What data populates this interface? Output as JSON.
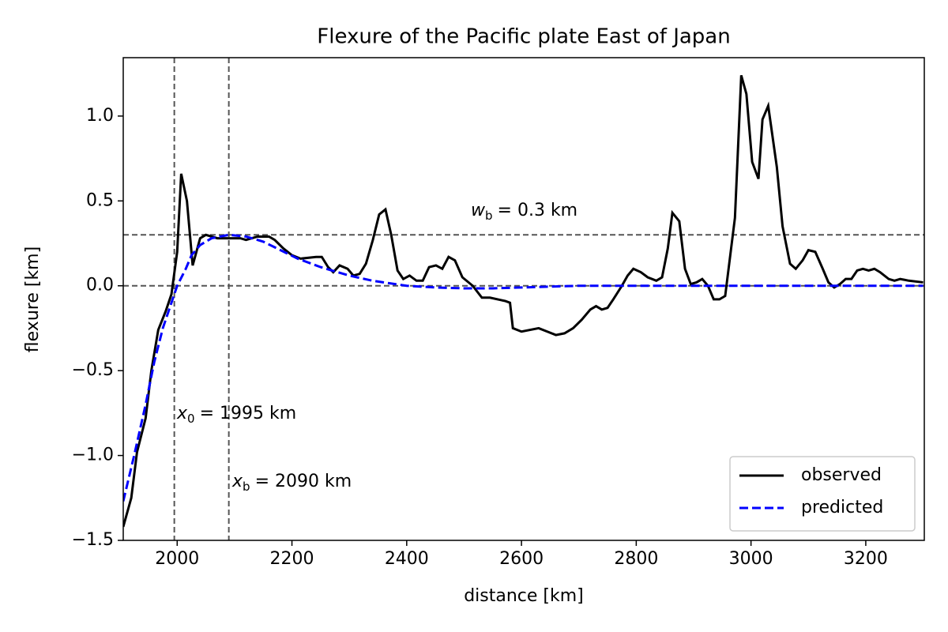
{
  "chart_data": {
    "type": "line",
    "title": "Flexure of the Pacific plate East of Japan",
    "xlabel": "distance [km]",
    "ylabel": "flexure [km]",
    "xlim": [
      1906,
      3302
    ],
    "ylim": [
      -1.5,
      1.344
    ],
    "xticks": [
      2000,
      2200,
      2400,
      2600,
      2800,
      3000,
      3200
    ],
    "yticks": [
      {
        "value": -1.5,
        "label": "−1.5"
      },
      {
        "value": -1.0,
        "label": "−1.0"
      },
      {
        "value": -0.5,
        "label": "−0.5"
      },
      {
        "value": 0.0,
        "label": "0.0"
      },
      0.5,
      {
        "value": 1.0,
        "label": "1.0"
      }
    ],
    "reference_lines": {
      "x": [
        1995,
        2090
      ],
      "y": [
        0,
        0.3
      ],
      "color": "#555555"
    },
    "annotations": [
      {
        "var": "w",
        "sub": "b",
        "text": "= 0.3 km"
      },
      {
        "var": "x",
        "sub": "0",
        "text": "= 1995 km"
      },
      {
        "var": "x",
        "sub": "b",
        "text": "= 2090 km"
      }
    ],
    "legend": "lower right",
    "series": [
      {
        "name": "observed",
        "color": "#000000",
        "dash": false,
        "x": [
          1906,
          1920,
          1930,
          1945,
          1955,
          1967,
          1980,
          1990,
          2000,
          2007,
          2017,
          2027,
          2040,
          2050,
          2070,
          2090,
          2110,
          2120,
          2140,
          2160,
          2170,
          2185,
          2200,
          2215,
          2242,
          2252,
          2263,
          2272,
          2283,
          2297,
          2307,
          2318,
          2329,
          2341,
          2352,
          2363,
          2373,
          2384,
          2394,
          2405,
          2417,
          2428,
          2439,
          2451,
          2462,
          2473,
          2484,
          2497,
          2515,
          2531,
          2545,
          2572,
          2580,
          2585,
          2600,
          2630,
          2645,
          2660,
          2675,
          2690,
          2705,
          2720,
          2730,
          2740,
          2750,
          2760,
          2775,
          2785,
          2795,
          2808,
          2820,
          2835,
          2845,
          2855,
          2863,
          2875,
          2885,
          2895,
          2905,
          2915,
          2925,
          2935,
          2945,
          2955,
          2972,
          2983,
          2992,
          3002,
          3013,
          3020,
          3030,
          3045,
          3055,
          3068,
          3078,
          3090,
          3100,
          3112,
          3125,
          3135,
          3145,
          3155,
          3165,
          3175,
          3185,
          3195,
          3205,
          3215,
          3225,
          3240,
          3250,
          3260,
          3275,
          3300
        ],
        "values": [
          -1.42,
          -1.25,
          -0.98,
          -0.78,
          -0.5,
          -0.26,
          -0.15,
          -0.05,
          0.2,
          0.66,
          0.5,
          0.12,
          0.28,
          0.3,
          0.28,
          0.28,
          0.28,
          0.27,
          0.29,
          0.29,
          0.27,
          0.22,
          0.18,
          0.16,
          0.17,
          0.17,
          0.11,
          0.08,
          0.12,
          0.1,
          0.06,
          0.07,
          0.13,
          0.27,
          0.42,
          0.45,
          0.3,
          0.09,
          0.04,
          0.06,
          0.03,
          0.03,
          0.11,
          0.12,
          0.1,
          0.17,
          0.15,
          0.05,
          0.0,
          -0.07,
          -0.07,
          -0.09,
          -0.1,
          -0.25,
          -0.27,
          -0.25,
          -0.27,
          -0.29,
          -0.28,
          -0.25,
          -0.2,
          -0.14,
          -0.12,
          -0.14,
          -0.13,
          -0.08,
          0.0,
          0.06,
          0.1,
          0.08,
          0.05,
          0.03,
          0.05,
          0.22,
          0.43,
          0.38,
          0.1,
          0.01,
          0.02,
          0.04,
          0.0,
          -0.08,
          -0.08,
          -0.06,
          0.4,
          1.24,
          1.13,
          0.73,
          0.63,
          0.98,
          1.06,
          0.7,
          0.35,
          0.13,
          0.1,
          0.15,
          0.21,
          0.2,
          0.1,
          0.02,
          -0.01,
          0.01,
          0.04,
          0.04,
          0.09,
          0.1,
          0.09,
          0.1,
          0.08,
          0.04,
          0.03,
          0.04,
          0.03,
          0.02
        ]
      },
      {
        "name": "predicted",
        "color": "#0000ff",
        "dash": true,
        "x": [
          1906,
          1925,
          1945,
          1960,
          1975,
          1990,
          2000,
          2015,
          2025,
          2040,
          2060,
          2090,
          2120,
          2150,
          2180,
          2210,
          2250,
          2300,
          2340,
          2400,
          2450,
          2500,
          2550,
          2600,
          2650,
          2700,
          2800,
          3000,
          3300
        ],
        "values": [
          -1.27,
          -1.0,
          -0.7,
          -0.45,
          -0.25,
          -0.1,
          0.0,
          0.1,
          0.18,
          0.24,
          0.28,
          0.3,
          0.29,
          0.26,
          0.21,
          0.16,
          0.11,
          0.06,
          0.03,
          0.0,
          -0.01,
          -0.015,
          -0.015,
          -0.01,
          -0.005,
          0,
          0,
          0,
          0
        ]
      }
    ]
  }
}
